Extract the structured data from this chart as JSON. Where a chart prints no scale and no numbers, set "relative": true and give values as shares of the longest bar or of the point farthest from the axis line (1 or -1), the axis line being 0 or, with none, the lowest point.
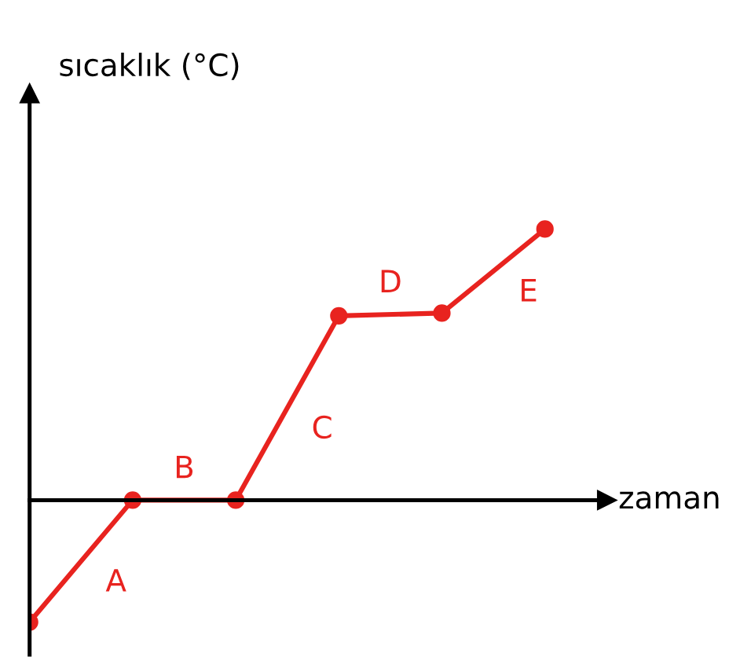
{
  "chart_data": {
    "type": "line",
    "relative": true,
    "ylabel": "sıcaklık (°C)",
    "xlabel": "zaman",
    "categories": [
      null,
      null,
      null,
      null,
      null,
      null
    ],
    "series": [
      {
        "color": "#e8231f",
        "values": [
          -0.45,
          0,
          0,
          0.68,
          0.69,
          1
        ]
      }
    ],
    "marker": "circle",
    "line_style": "solid",
    "annotations": [
      "A",
      "B",
      "C",
      "D",
      "E"
    ]
  }
}
